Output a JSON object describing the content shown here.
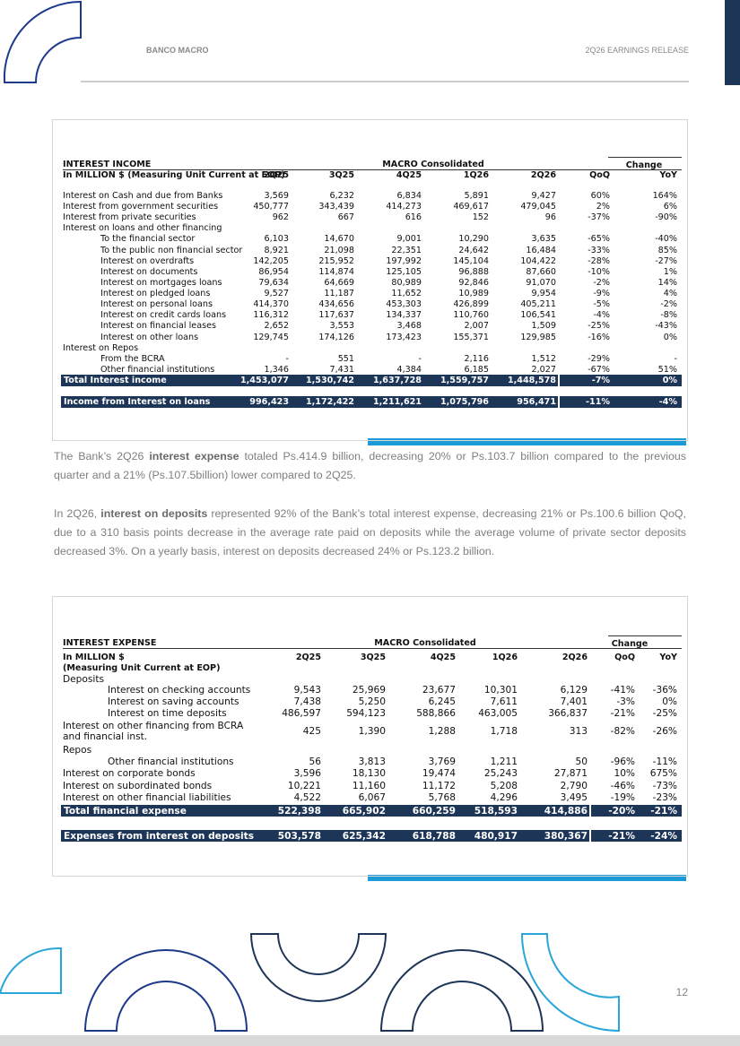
{
  "header": {
    "company": "BANCO MACRO",
    "release": "2Q26 EARNINGS RELEASE"
  },
  "table1": {
    "title": "INTEREST INCOME",
    "group": "MACRO Consolidated",
    "change": "Change",
    "header_label": [
      "In MILLION $ (Measuring Unit Current at EOP)"
    ],
    "columns": [
      "2Q25",
      "3Q25",
      "4Q25",
      "1Q26",
      "2Q26",
      "QoQ",
      "YoY"
    ],
    "rows": [
      [
        "Interest on Cash and due from Banks",
        "3,569",
        "6,232",
        "6,834",
        "5,891",
        "9,427",
        "60%",
        "164%"
      ],
      [
        "Interest from government securities",
        "450,777",
        "343,439",
        "414,273",
        "469,617",
        "479,045",
        "2%",
        "6%"
      ],
      [
        "Interest from private securities",
        "962",
        "667",
        "616",
        "152",
        "96",
        "-37%",
        "-90%"
      ],
      [
        "Interest on loans and other financing"
      ],
      [
        "To the financial sector",
        "6,103",
        "14,670",
        "9,001",
        "10,290",
        "3,635",
        "-65%",
        "-40%"
      ],
      [
        "To the public non financial sector",
        "8,921",
        "21,098",
        "22,351",
        "24,642",
        "16,484",
        "-33%",
        "85%"
      ],
      [
        "Interest on overdrafts",
        "142,205",
        "215,952",
        "197,992",
        "145,104",
        "104,422",
        "-28%",
        "-27%"
      ],
      [
        "Interest on documents",
        "86,954",
        "114,874",
        "125,105",
        "96,888",
        "87,660",
        "-10%",
        "1%"
      ],
      [
        "Interest on mortgages loans",
        "79,634",
        "64,669",
        "80,989",
        "92,846",
        "91,070",
        "-2%",
        "14%"
      ],
      [
        "Interest on pledged loans",
        "9,527",
        "11,187",
        "11,652",
        "10,989",
        "9,954",
        "-9%",
        "4%"
      ],
      [
        "Interest on personal loans",
        "414,370",
        "434,656",
        "453,303",
        "426,899",
        "405,211",
        "-5%",
        "-2%"
      ],
      [
        "Interest on credit cards loans",
        "116,312",
        "117,637",
        "134,337",
        "110,760",
        "106,541",
        "-4%",
        "-8%"
      ],
      [
        "Interest on financial leases",
        "2,652",
        "3,553",
        "3,468",
        "2,007",
        "1,509",
        "-25%",
        "-43%"
      ],
      [
        "Interest on other loans",
        "129,745",
        "174,126",
        "173,423",
        "155,371",
        "129,985",
        "-16%",
        "0%"
      ],
      [
        "Interest on Repos"
      ],
      [
        "From the BCRA",
        "-",
        "551",
        "-",
        "2,116",
        "1,512",
        "-29%",
        "-"
      ],
      [
        "Other financial institutions",
        "1,346",
        "7,431",
        "4,384",
        "6,185",
        "2,027",
        "-67%",
        "51%"
      ]
    ],
    "totals": [
      [
        "Total Interest income",
        "1,453,077",
        "1,530,742",
        "1,637,728",
        "1,559,757",
        "1,448,578",
        "-7%",
        "0%"
      ],
      [
        "Income from Interest on loans",
        "996,423",
        "1,172,422",
        "1,211,621",
        "1,075,796",
        "956,471",
        "-11%",
        "-4%"
      ]
    ]
  },
  "paragraphs": [
    [
      " The Bank’s 2Q26 ",
      "interest expense",
      " totaled Ps.414.9 billion, decreasing 20% or Ps.103.7 billion compared to the previous quarter and a 21% (Ps.107.5billion) lower compared to 2Q25."
    ],
    [
      "In 2Q26, ",
      "interest on deposits",
      " represented 92% of the Bank’s total interest expense, decreasing 21% or Ps.100.6 billion QoQ, due to a 310 basis points decrease in the average rate paid on deposits while the average volume of private sector deposits decreased 3%. On a yearly basis, interest on deposits decreased 24% or Ps.123.2 billion."
    ]
  ],
  "table2": {
    "title": "INTEREST EXPENSE",
    "group": "MACRO Consolidated",
    "change": "Change",
    "header_label": [
      "In MILLION $",
      "(Measuring Unit Current at EOP)"
    ],
    "columns": [
      "2Q25",
      "3Q25",
      "4Q25",
      "1Q26",
      "2Q26",
      "QoQ",
      "YoY"
    ],
    "rows": [
      [
        "Deposits"
      ],
      [
        "Interest on checking accounts",
        "9,543",
        "25,969",
        "23,677",
        "10,301",
        "6,129",
        "-41%",
        "-36%"
      ],
      [
        "Interest on saving accounts",
        "7,438",
        "5,250",
        "6,245",
        "7,611",
        "7,401",
        "-3%",
        "0%"
      ],
      [
        "Interest on time deposits",
        "486,597",
        "594,123",
        "588,866",
        "463,005",
        "366,837",
        "-21%",
        "-25%"
      ],
      [
        "Interest on other financing from BCRA and financial inst.",
        "425",
        "1,390",
        "1,288",
        "1,718",
        "313",
        "-82%",
        "-26%"
      ],
      [
        "Repos"
      ],
      [
        "Other financial institutions",
        "56",
        "3,813",
        "3,769",
        "1,211",
        "50",
        "-96%",
        "-11%"
      ],
      [
        "Interest on corporate bonds",
        "3,596",
        "18,130",
        "19,474",
        "25,243",
        "27,871",
        "10%",
        "675%"
      ],
      [
        "Interest on subordinated bonds",
        "10,221",
        "11,160",
        "11,172",
        "5,208",
        "2,790",
        "-46%",
        "-73%"
      ],
      [
        "Interest on other financial liabilities",
        "4,522",
        "6,067",
        "5,768",
        "4,296",
        "3,495",
        "-19%",
        "-23%"
      ]
    ],
    "totals": [
      [
        "Total financial expense",
        "522,398",
        "665,902",
        "660,259",
        "518,593",
        "414,886",
        "-20%",
        "-21%"
      ],
      [
        "Expenses from interest on deposits",
        "503,578",
        "625,342",
        "618,788",
        "480,917",
        "380,367",
        "-21%",
        "-24%"
      ]
    ]
  },
  "page_number": "12"
}
